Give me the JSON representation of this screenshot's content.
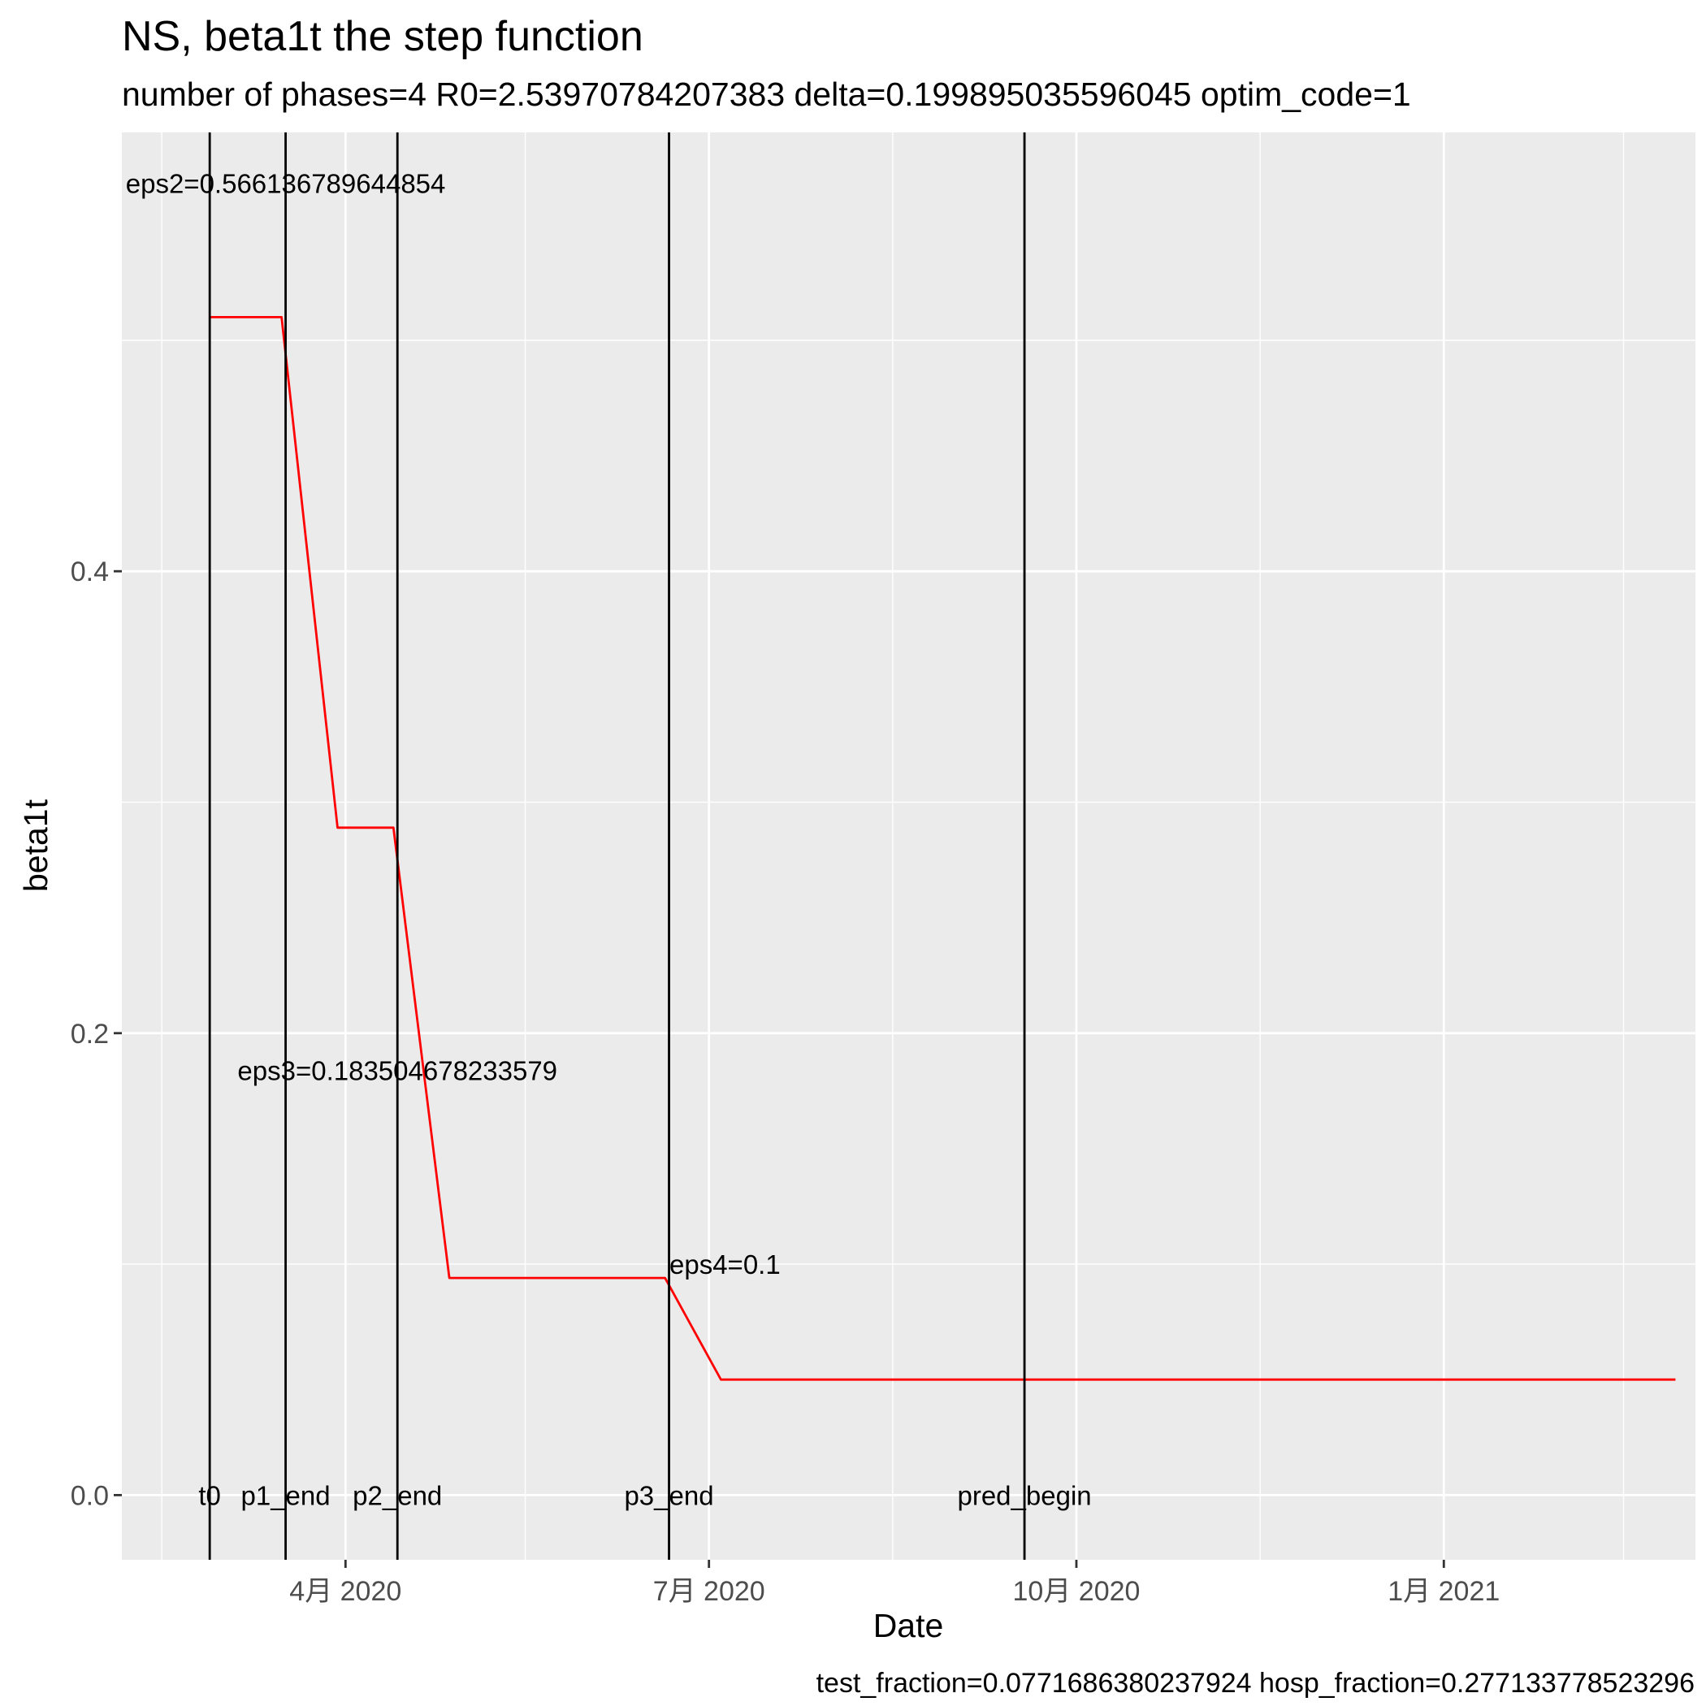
{
  "chart_data": {
    "type": "line",
    "title": "NS, beta1t the step function",
    "subtitle": "number of phases=4   R0=2.53970784207383   delta=0.199895035596045   optim_code=1",
    "caption": "test_fraction=0.0771686380237924   hosp_fraction=0.277133778523296",
    "xlabel": "Date",
    "ylabel": "beta1t",
    "x_ticks": [
      "2020-04-01",
      "2020-07-01",
      "2020-10-01",
      "2021-01-01"
    ],
    "x_tick_labels": [
      "4月 2020",
      "7月 2020",
      "10月 2020",
      "1月 2021"
    ],
    "x_minor_ticks": [
      "2020-02-15",
      "2020-05-16",
      "2020-08-16",
      "2020-11-16",
      "2021-02-15"
    ],
    "xlim": [
      "2020-02-05",
      "2021-03-05"
    ],
    "y_ticks": [
      0.0,
      0.2,
      0.4
    ],
    "y_tick_labels": [
      "0.0",
      "0.2",
      "0.4"
    ],
    "ylim": [
      -0.028,
      0.59
    ],
    "grid": true,
    "series": [
      {
        "color": "#ff0000",
        "x": [
          "2020-02-27",
          "2020-03-16",
          "2020-03-30",
          "2020-04-13",
          "2020-04-27",
          "2020-06-20",
          "2020-07-04",
          "2021-02-28"
        ],
        "y": [
          0.51,
          0.51,
          0.289,
          0.289,
          0.094,
          0.094,
          0.05,
          0.05
        ]
      }
    ],
    "vlines": [
      {
        "date": "2020-02-27",
        "label": "t0"
      },
      {
        "date": "2020-03-17",
        "label": "p1_end"
      },
      {
        "date": "2020-04-14",
        "label": "p2_end"
      },
      {
        "date": "2020-06-21",
        "label": "p3_end"
      },
      {
        "date": "2020-09-18",
        "label": "pred_begin"
      }
    ],
    "annotations": [
      {
        "text": "eps2=0.566136789644854",
        "x": "2020-03-17",
        "y": 0.568
      },
      {
        "text": "eps3=0.183504678233579",
        "x": "2020-04-14",
        "y": 0.184
      },
      {
        "text": "eps4=0.1",
        "x": "2020-07-05",
        "y": 0.1
      }
    ]
  }
}
